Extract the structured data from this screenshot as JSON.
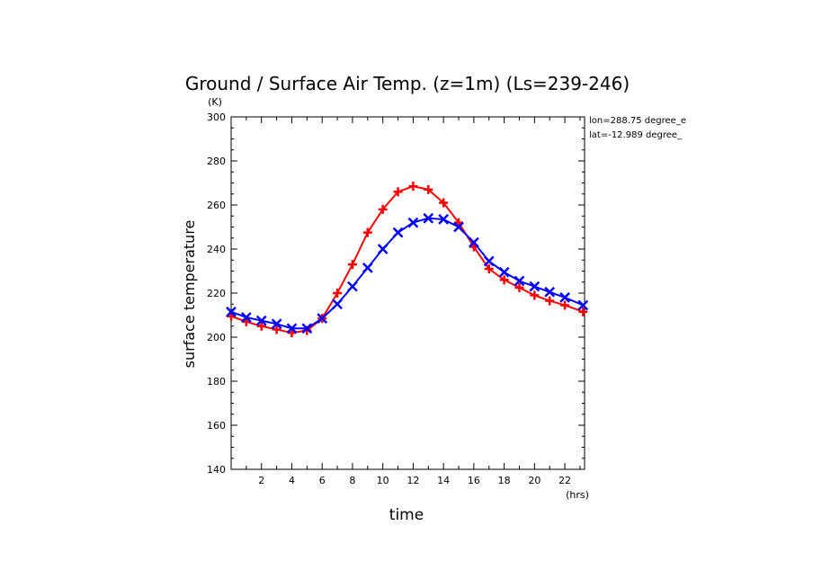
{
  "chart_data": {
    "type": "line",
    "title": "Ground / Surface Air Temp. (z=1m) (Ls=239-246)",
    "xlabel": "time",
    "ylabel": "surface temperature",
    "x_unit": "(hrs)",
    "y_unit": "(K)",
    "xlim": [
      0,
      23.3
    ],
    "ylim": [
      140,
      300
    ],
    "xticks": [
      2,
      4,
      6,
      8,
      10,
      12,
      14,
      16,
      18,
      20,
      22
    ],
    "yticks": [
      140,
      160,
      180,
      200,
      220,
      240,
      260,
      280,
      300
    ],
    "grid": false,
    "annotations": [
      "lon=288.75 degree_e",
      "lat=-12.989 degree_"
    ],
    "x": [
      0,
      1,
      2,
      3,
      4,
      5,
      6,
      7,
      8,
      9,
      10,
      11,
      12,
      13,
      14,
      15,
      16,
      17,
      18,
      19,
      20,
      21,
      22,
      23.2
    ],
    "series": [
      {
        "color": "#ff0000",
        "marker": "plus",
        "values": [
          209.5,
          207,
          205,
          203.5,
          202,
          203,
          208.5,
          220,
          233,
          247.5,
          258,
          266,
          268.5,
          267,
          261,
          252,
          241,
          231,
          226,
          222.5,
          219,
          216.5,
          214.5,
          211.5
        ]
      },
      {
        "color": "#0000ff",
        "marker": "x",
        "values": [
          211.5,
          209,
          207.5,
          206,
          204,
          204,
          208.5,
          215,
          223,
          231.5,
          240,
          247.5,
          252,
          254,
          253.5,
          250,
          243,
          234.5,
          229.5,
          225.5,
          223,
          220.5,
          218,
          214.5
        ]
      }
    ]
  }
}
